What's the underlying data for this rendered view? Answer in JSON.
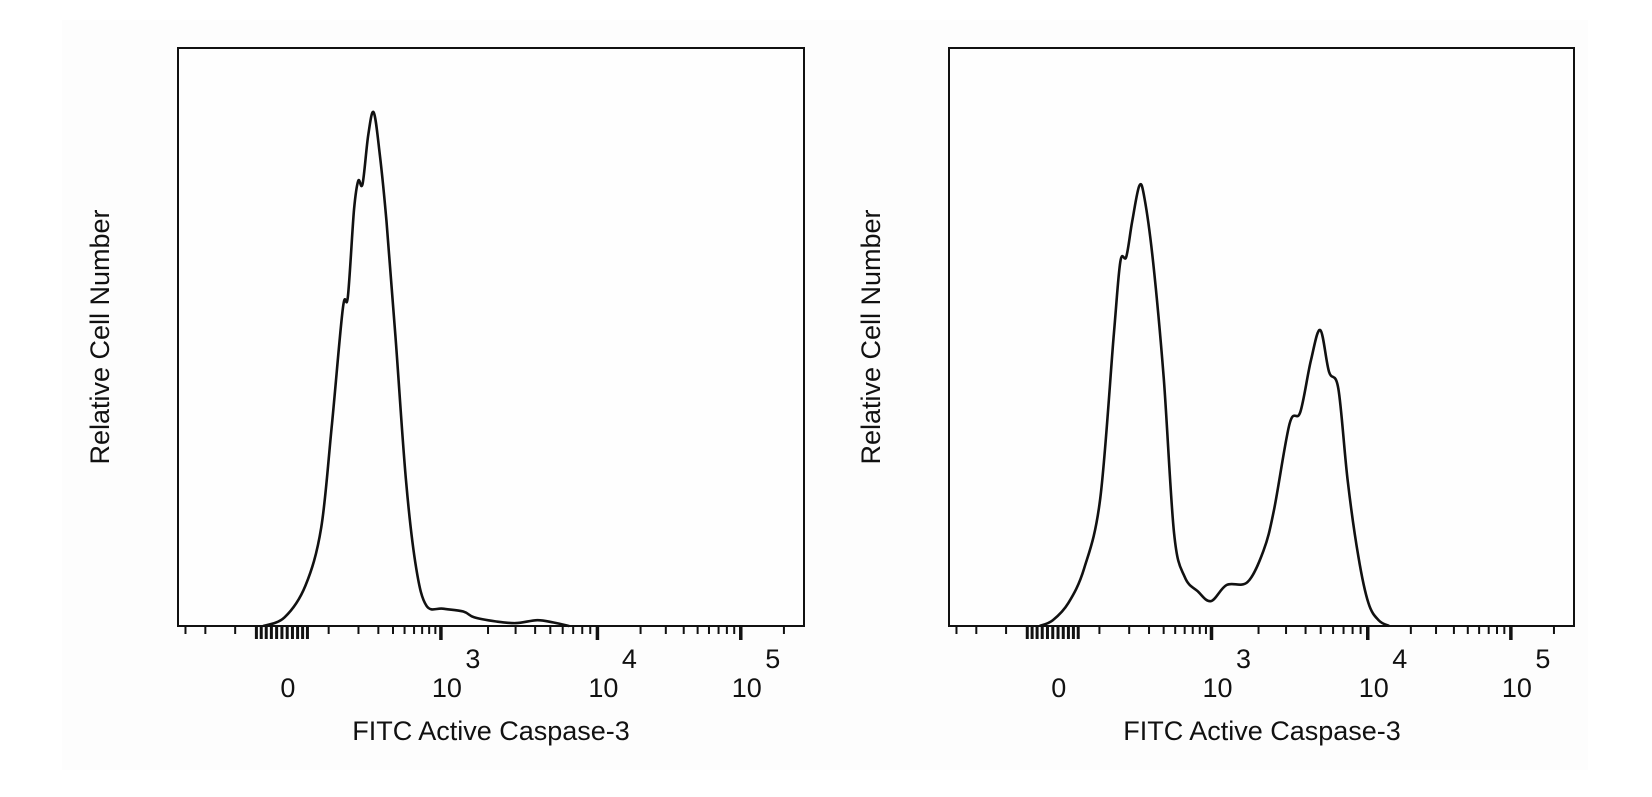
{
  "chart_data": [
    {
      "type": "line",
      "title": "",
      "xlabel": "FITC Active Caspase-3",
      "ylabel": "Relative Cell Number",
      "x_scale": "biexponential",
      "xlim": [
        -350,
        262144
      ],
      "ylim": [
        0,
        1
      ],
      "grid": false,
      "x_ticks": [
        {
          "value": 0,
          "base": "0",
          "exp": ""
        },
        {
          "value": 1000,
          "base": "10",
          "exp": "3"
        },
        {
          "value": 10000,
          "base": "10",
          "exp": "4"
        },
        {
          "value": 100000,
          "base": "10",
          "exp": "5"
        }
      ],
      "series": [
        {
          "x": [
            -36,
            5,
            46,
            81,
            109,
            142,
            159,
            182,
            199,
            218,
            245,
            273,
            307,
            352,
            420,
            515,
            625,
            760,
            1030,
            1390,
            1630,
            2230,
            3020,
            4130,
            5250,
            6600
          ],
          "y": [
            0,
            0.015,
            0.07,
            0.17,
            0.35,
            0.55,
            0.57,
            0.72,
            0.77,
            0.765,
            0.85,
            0.889,
            0.82,
            0.7,
            0.5,
            0.25,
            0.1,
            0.035,
            0.03,
            0.025,
            0.015,
            0.008,
            0.005,
            0.01,
            0.006,
            0
          ]
        }
      ]
    },
    {
      "type": "line",
      "title": "",
      "xlabel": "FITC Active Caspase-3",
      "ylabel": "Relative Cell Number",
      "x_scale": "biexponential",
      "xlim": [
        -350,
        262144
      ],
      "ylim": [
        0,
        1
      ],
      "grid": false,
      "x_ticks": [
        {
          "value": 0,
          "base": "0",
          "exp": ""
        },
        {
          "value": 1000,
          "base": "10",
          "exp": "3"
        },
        {
          "value": 10000,
          "base": "10",
          "exp": "4"
        },
        {
          "value": 100000,
          "base": "10",
          "exp": "5"
        }
      ],
      "series": [
        {
          "x": [
            -25,
            0,
            30,
            63,
            102,
            142,
            165,
            188,
            213,
            247,
            274,
            325,
            400,
            490,
            600,
            770,
            990,
            1250,
            1700,
            2150,
            2510,
            3160,
            3700,
            4330,
            4970,
            5650,
            6490,
            7450,
            8710,
            10100,
            11900,
            14100
          ],
          "y": [
            0,
            0.01,
            0.04,
            0.1,
            0.22,
            0.5,
            0.63,
            0.639,
            0.7,
            0.762,
            0.74,
            0.63,
            0.43,
            0.16,
            0.085,
            0.06,
            0.043,
            0.071,
            0.076,
            0.13,
            0.2,
            0.35,
            0.37,
            0.46,
            0.512,
            0.44,
            0.41,
            0.25,
            0.12,
            0.04,
            0.01,
            0
          ]
        }
      ]
    }
  ],
  "colors": {
    "line": "#111111",
    "panel_background": "#fdfdfd"
  }
}
